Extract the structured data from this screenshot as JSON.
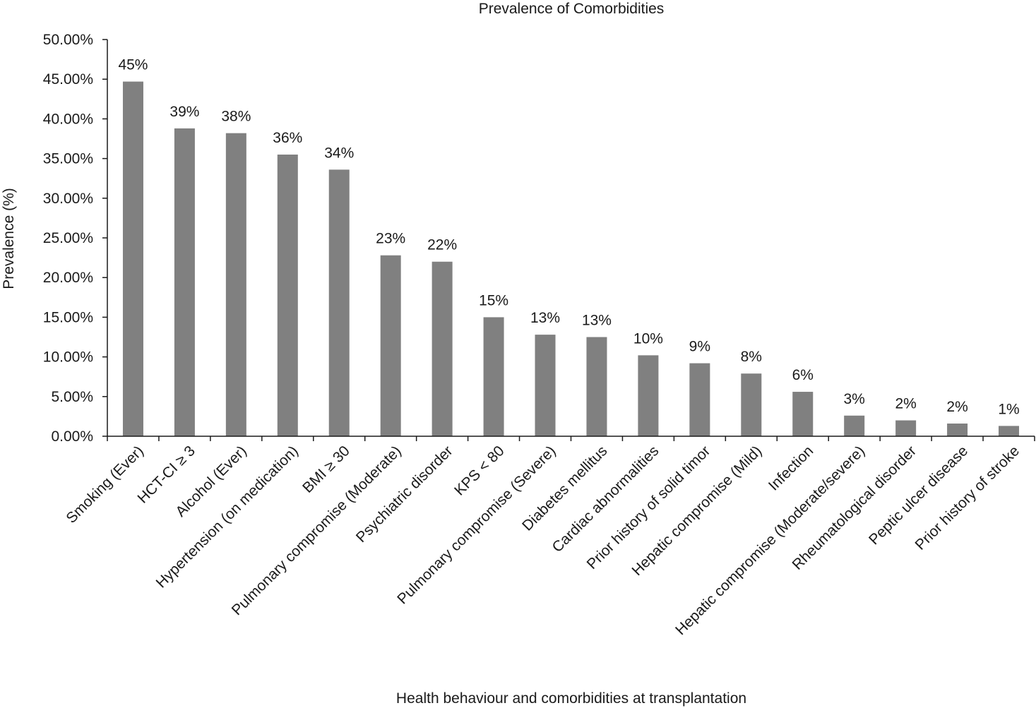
{
  "chart_data": {
    "type": "bar",
    "title": "Prevalence of Comorbidities",
    "xlabel": "Health behaviour and comorbidities at transplantation",
    "ylabel": "Prevalence (%)",
    "ylim": [
      0,
      50
    ],
    "yticks": [
      0,
      5,
      10,
      15,
      20,
      25,
      30,
      35,
      40,
      45,
      50
    ],
    "ytick_labels": [
      "0.00%",
      "5.00%",
      "10.00%",
      "15.00%",
      "20.00%",
      "25.00%",
      "30.00%",
      "35.00%",
      "40.00%",
      "45.00%",
      "50.00%"
    ],
    "grid": false,
    "legend": "none",
    "bar_color": "#808080",
    "categories": [
      "Smoking (Ever)",
      "HCT-CI ≥ 3",
      "Alcohol (Ever)",
      "Hypertension (on medication)",
      "BMI ≥ 30",
      "Pulmonary compromise (Moderate)",
      "Psychiatric disorder",
      "KPS < 80",
      "Pulmonary compromise (Severe)",
      "Diabetes mellitus",
      "Cardiac abnormalities",
      "Prior history of solid timor",
      "Hepatic compromise (Mild)",
      "Infection",
      "Hepatic compromise (Moderate/severe)",
      "Rheumatological disorder",
      "Peptic ulcer disease",
      "Prior history of stroke"
    ],
    "values": [
      44.7,
      38.8,
      38.2,
      35.5,
      33.6,
      22.8,
      22.0,
      15.0,
      12.8,
      12.5,
      10.2,
      9.2,
      7.9,
      5.6,
      2.6,
      2.0,
      1.6,
      1.3
    ],
    "data_labels": [
      "45%",
      "39%",
      "38%",
      "36%",
      "34%",
      "23%",
      "22%",
      "15%",
      "13%",
      "13%",
      "10%",
      "9%",
      "8%",
      "6%",
      "3%",
      "2%",
      "2%",
      "1%"
    ]
  }
}
